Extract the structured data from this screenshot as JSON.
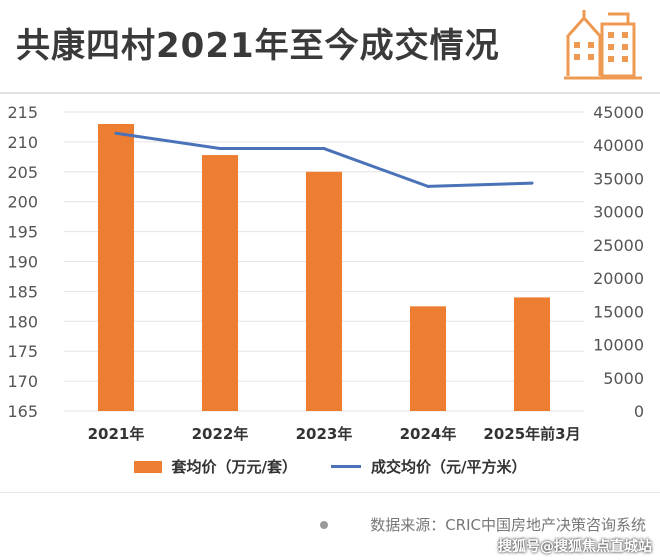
{
  "header": {
    "title": "共康四村2021年至今成交情况"
  },
  "icons": {
    "logo": "building-icon",
    "source_bullet": "dot-icon"
  },
  "colors": {
    "bar": "#ed7d31",
    "line": "#4a72b8",
    "logo": "#ef9a52"
  },
  "chart_data": {
    "type": "bar",
    "categories": [
      "2021年",
      "2022年",
      "2023年",
      "2024年",
      "2025年前3月"
    ],
    "series": [
      {
        "name": "套均价（万元/套）",
        "type": "bar",
        "axis": "left",
        "values": [
          213,
          207.8,
          205,
          182.5,
          184
        ]
      },
      {
        "name": "成交均价（元/平方米）",
        "type": "line",
        "axis": "right",
        "values": [
          41800,
          39500,
          39500,
          33800,
          34300
        ]
      }
    ],
    "y_left": {
      "ticks": [
        "215",
        "210",
        "205",
        "200",
        "195",
        "190",
        "185",
        "180",
        "175",
        "170",
        "165"
      ],
      "ylim": [
        165,
        215
      ]
    },
    "y_right": {
      "ticks": [
        "45000",
        "40000",
        "35000",
        "30000",
        "25000",
        "20000",
        "15000",
        "10000",
        "5000",
        "0"
      ],
      "ylim": [
        0,
        45000
      ]
    },
    "legend_position": "bottom",
    "grid": true
  },
  "legend": {
    "bar_label": "套均价（万元/套）",
    "line_label": "成交均价（元/平方米）"
  },
  "footer": {
    "source": "数据来源：CRIC中国房地产决策咨询系统",
    "watermark": "搜狐号@搜狐焦点直城站"
  }
}
